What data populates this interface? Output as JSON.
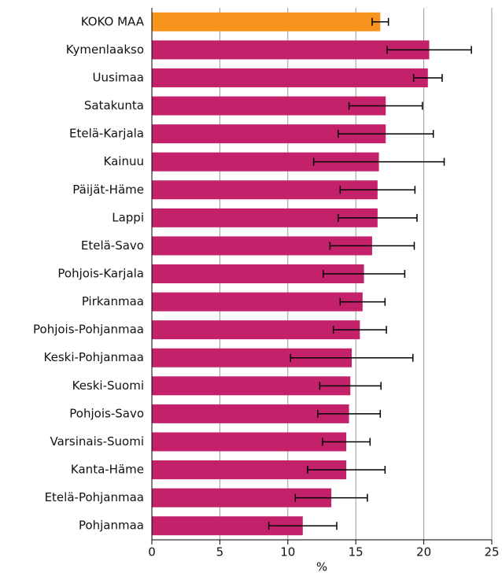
{
  "chart_data": {
    "type": "bar",
    "orientation": "horizontal",
    "x_label": "%",
    "categories": [
      "KOKO MAA",
      "Kymenlaakso",
      "Uusimaa",
      "Satakunta",
      "Etelä-Karjala",
      "Kainuu",
      "Päijät-Häme",
      "Lappi",
      "Etelä-Savo",
      "Pohjois-Karjala",
      "Pirkanmaa",
      "Pohjois-Pohjanmaa",
      "Keski-Pohjanmaa",
      "Keski-Suomi",
      "Pohjois-Savo",
      "Varsinais-Suomi",
      "Kanta-Häme",
      "Etelä-Pohjanmaa",
      "Pohjanmaa"
    ],
    "values": [
      16.8,
      20.4,
      20.3,
      17.2,
      17.2,
      16.7,
      16.6,
      16.6,
      16.2,
      15.6,
      15.5,
      15.3,
      14.7,
      14.6,
      14.5,
      14.3,
      14.3,
      13.2,
      11.1
    ],
    "errors": [
      0.6,
      3.1,
      1.05,
      2.7,
      3.5,
      4.8,
      2.75,
      2.9,
      3.1,
      3.0,
      1.65,
      1.95,
      4.5,
      2.25,
      2.3,
      1.75,
      2.85,
      2.65,
      2.5
    ],
    "colors": [
      "#f7941d",
      "#c4216b",
      "#c4216b",
      "#c4216b",
      "#c4216b",
      "#c4216b",
      "#c4216b",
      "#c4216b",
      "#c4216b",
      "#c4216b",
      "#c4216b",
      "#c4216b",
      "#c4216b",
      "#c4216b",
      "#c4216b",
      "#c4216b",
      "#c4216b",
      "#c4216b",
      "#c4216b"
    ],
    "xlim": [
      0,
      25
    ],
    "xticks": [
      0,
      5,
      10,
      15,
      20,
      25
    ],
    "grid": true
  }
}
